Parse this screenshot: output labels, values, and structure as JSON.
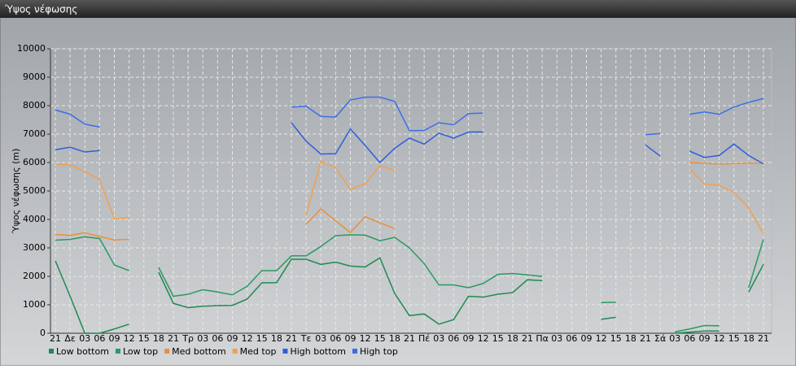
{
  "window_title": "Ύψος νέφωσης",
  "chart_data": {
    "type": "line",
    "y_label": "Ύψος νέφωσης (m)",
    "categories": [
      "21",
      "Δε",
      "03",
      "06",
      "09",
      "12",
      "15",
      "18",
      "21",
      "Τρ",
      "03",
      "06",
      "09",
      "12",
      "15",
      "18",
      "21",
      "Τε",
      "03",
      "06",
      "09",
      "12",
      "15",
      "18",
      "21",
      "Πέ",
      "03",
      "06",
      "09",
      "12",
      "15",
      "18",
      "21",
      "Πα",
      "03",
      "06",
      "09",
      "12",
      "15",
      "18",
      "21",
      "Σά",
      "03",
      "06",
      "09",
      "12",
      "15",
      "18",
      "21"
    ],
    "ylim": [
      0,
      10000
    ],
    "yticks": [
      0,
      1000,
      2000,
      3000,
      4000,
      5000,
      6000,
      7000,
      8000,
      9000,
      10000
    ],
    "grid": true,
    "series": [
      {
        "name": "Low bottom",
        "color": "#1f8a50",
        "values": [
          2550,
          1300,
          0,
          0,
          150,
          320,
          null,
          2150,
          1050,
          900,
          950,
          970,
          980,
          1200,
          1770,
          1780,
          2600,
          2600,
          2420,
          2500,
          2360,
          2330,
          2650,
          1400,
          620,
          680,
          320,
          480,
          1300,
          1270,
          1370,
          1430,
          1880,
          1850,
          null,
          null,
          null,
          490,
          560,
          null,
          null,
          null,
          0,
          40,
          80,
          80,
          null,
          1450,
          2420
        ]
      },
      {
        "name": "Low top",
        "color": "#2a9a60",
        "values": [
          3270,
          3300,
          3390,
          3330,
          2400,
          2200,
          null,
          2320,
          1300,
          1370,
          1530,
          1450,
          1350,
          1650,
          2200,
          2200,
          2720,
          2720,
          3050,
          3430,
          3460,
          3450,
          3250,
          3370,
          3000,
          2450,
          1700,
          1700,
          1600,
          1750,
          2070,
          2100,
          2050,
          2000,
          null,
          null,
          null,
          1080,
          1090,
          null,
          null,
          null,
          50,
          150,
          270,
          260,
          null,
          1600,
          3300
        ]
      },
      {
        "name": "Med bottom",
        "color": "#e8903a",
        "values": [
          3470,
          3440,
          3530,
          3400,
          3280,
          3300,
          null,
          null,
          null,
          null,
          null,
          null,
          null,
          null,
          null,
          null,
          null,
          3830,
          4370,
          3950,
          3540,
          4100,
          3880,
          3680,
          null,
          null,
          null,
          null,
          null,
          null,
          null,
          null,
          null,
          null,
          null,
          null,
          null,
          null,
          null,
          null,
          null,
          null,
          null,
          6000,
          5980,
          5950,
          5960,
          5980,
          5980
        ]
      },
      {
        "name": "Med top",
        "color": "#f0a050",
        "values": [
          5950,
          5920,
          5680,
          5400,
          4020,
          4060,
          null,
          null,
          null,
          null,
          null,
          null,
          null,
          null,
          null,
          null,
          null,
          4150,
          6050,
          5820,
          5050,
          5250,
          5900,
          5720,
          null,
          null,
          null,
          null,
          null,
          null,
          null,
          null,
          null,
          null,
          null,
          null,
          null,
          null,
          null,
          null,
          null,
          null,
          null,
          5780,
          5250,
          5200,
          4950,
          4400,
          3500
        ]
      },
      {
        "name": "High bottom",
        "color": "#2f5fd8",
        "values": [
          6450,
          6540,
          6370,
          6420,
          null,
          null,
          null,
          null,
          null,
          null,
          null,
          null,
          null,
          null,
          null,
          null,
          7400,
          6750,
          6300,
          6310,
          7180,
          6600,
          6000,
          6500,
          6860,
          6650,
          7030,
          6860,
          7070,
          7080,
          null,
          null,
          null,
          null,
          null,
          null,
          null,
          null,
          null,
          null,
          6620,
          6230,
          null,
          6400,
          6180,
          6250,
          6650,
          6250,
          5950
        ]
      },
      {
        "name": "High top",
        "color": "#3b6fe8",
        "values": [
          7850,
          7700,
          7350,
          7250,
          null,
          null,
          null,
          null,
          null,
          null,
          null,
          null,
          null,
          null,
          null,
          null,
          7950,
          7980,
          7620,
          7600,
          8200,
          8300,
          8300,
          8150,
          7120,
          7130,
          7400,
          7330,
          7720,
          7740,
          null,
          null,
          null,
          null,
          null,
          null,
          null,
          null,
          null,
          null,
          6980,
          7020,
          null,
          7700,
          7780,
          7700,
          7950,
          8120,
          8250
        ]
      }
    ]
  }
}
